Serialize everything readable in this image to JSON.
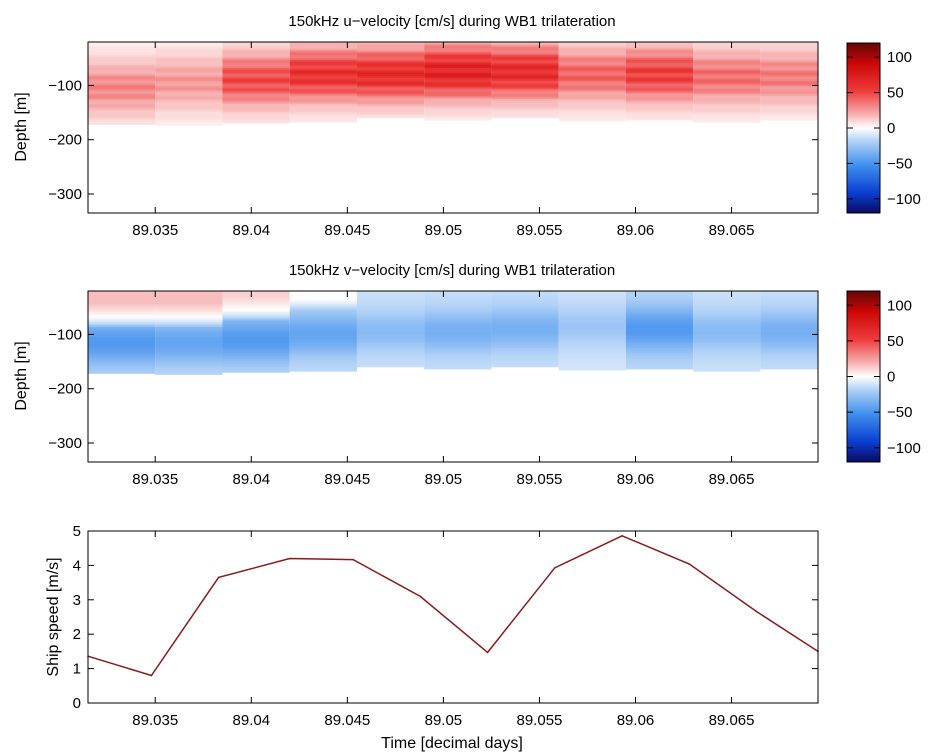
{
  "chart_data": [
    {
      "type": "heatmap",
      "title": "150kHz u−velocity [cm/s] during WB1 trilateration",
      "xlabel": "",
      "ylabel": "Depth [m]",
      "xlim": [
        89.0315,
        89.0695
      ],
      "ylim": [
        -335,
        -20
      ],
      "xticks": [
        "89.035",
        "89.04",
        "89.045",
        "89.05",
        "89.055",
        "89.06",
        "89.065"
      ],
      "yticks": [
        "−100",
        "−200",
        "−300"
      ],
      "colorbar": {
        "ticks": [
          "100",
          "50",
          "0",
          "−50",
          "−100"
        ],
        "range": [
          -120,
          120
        ]
      },
      "colormap": [
        "#0a0a60",
        "#0a3fd2",
        "#3f8fee",
        "#aed0f6",
        "#ffffff",
        "#f7b0b0",
        "#ee3a3a",
        "#cc0606",
        "#620808"
      ],
      "profiles": [
        {
          "t0": 89.0315,
          "t1": 89.035,
          "bottom": -172,
          "max": 45,
          "core": -105
        },
        {
          "t0": 89.035,
          "t1": 89.0385,
          "bottom": -174,
          "max": 40,
          "core": -95
        },
        {
          "t0": 89.0385,
          "t1": 89.042,
          "bottom": -170,
          "max": 62,
          "core": -90
        },
        {
          "t0": 89.042,
          "t1": 89.0455,
          "bottom": -168,
          "max": 72,
          "core": -80
        },
        {
          "t0": 89.0455,
          "t1": 89.049,
          "bottom": -160,
          "max": 75,
          "core": -80
        },
        {
          "t0": 89.049,
          "t1": 89.0525,
          "bottom": -164,
          "max": 80,
          "core": -75
        },
        {
          "t0": 89.0525,
          "t1": 89.056,
          "bottom": -160,
          "max": 75,
          "core": -75
        },
        {
          "t0": 89.056,
          "t1": 89.0595,
          "bottom": -166,
          "max": 55,
          "core": -80
        },
        {
          "t0": 89.0595,
          "t1": 89.063,
          "bottom": -164,
          "max": 66,
          "core": -80
        },
        {
          "t0": 89.063,
          "t1": 89.0665,
          "bottom": -168,
          "max": 52,
          "core": -85
        },
        {
          "t0": 89.0665,
          "t1": 89.0695,
          "bottom": -164,
          "max": 48,
          "core": -85
        }
      ]
    },
    {
      "type": "heatmap",
      "title": "150kHz v−velocity [cm/s] during WB1 trilateration",
      "xlabel": "",
      "ylabel": "Depth [m]",
      "xlim": [
        89.0315,
        89.0695
      ],
      "ylim": [
        -335,
        -20
      ],
      "xticks": [
        "89.035",
        "89.04",
        "89.045",
        "89.05",
        "89.055",
        "89.06",
        "89.065"
      ],
      "yticks": [
        "−100",
        "−200",
        "−300"
      ],
      "colorbar": {
        "ticks": [
          "100",
          "50",
          "0",
          "−50",
          "−100"
        ],
        "range": [
          -120,
          120
        ]
      },
      "colormap": [
        "#0a0a60",
        "#0a3fd2",
        "#3f8fee",
        "#aed0f6",
        "#ffffff",
        "#f7b0b0",
        "#ee3a3a",
        "#cc0606",
        "#620808"
      ],
      "profiles": [
        {
          "t0": 89.0315,
          "t1": 89.035,
          "bottom": -172,
          "top": 25,
          "zero": -68,
          "min": -55,
          "core": -115
        },
        {
          "t0": 89.035,
          "t1": 89.0385,
          "bottom": -174,
          "top": 25,
          "zero": -68,
          "min": -50,
          "core": -115
        },
        {
          "t0": 89.0385,
          "t1": 89.042,
          "bottom": -170,
          "top": 18,
          "zero": -55,
          "min": -55,
          "core": -110
        },
        {
          "t0": 89.042,
          "t1": 89.0455,
          "bottom": -168,
          "top": 3,
          "zero": -35,
          "min": -50,
          "core": -100
        },
        {
          "t0": 89.0455,
          "t1": 89.049,
          "bottom": -160,
          "top": -10,
          "zero": 0,
          "min": -40,
          "core": -95
        },
        {
          "t0": 89.049,
          "t1": 89.0525,
          "bottom": -164,
          "top": -22,
          "zero": 0,
          "min": -45,
          "core": -95
        },
        {
          "t0": 89.0525,
          "t1": 89.056,
          "bottom": -160,
          "top": -20,
          "zero": 0,
          "min": -45,
          "core": -90
        },
        {
          "t0": 89.056,
          "t1": 89.0595,
          "bottom": -166,
          "top": -25,
          "zero": 0,
          "min": -35,
          "core": -85
        },
        {
          "t0": 89.0595,
          "t1": 89.063,
          "bottom": -164,
          "top": -25,
          "zero": 0,
          "min": -55,
          "core": -90
        },
        {
          "t0": 89.063,
          "t1": 89.0665,
          "bottom": -168,
          "top": -15,
          "zero": 0,
          "min": -40,
          "core": -95
        },
        {
          "t0": 89.0665,
          "t1": 89.0695,
          "bottom": -164,
          "top": -25,
          "zero": 0,
          "min": -45,
          "core": -95
        }
      ]
    },
    {
      "type": "line",
      "title": "",
      "xlabel": "Time [decimal days]",
      "ylabel": "Ship speed [m/s]",
      "xlim": [
        89.0315,
        89.0695
      ],
      "ylim": [
        0,
        5
      ],
      "xticks": [
        "89.035",
        "89.04",
        "89.045",
        "89.05",
        "89.055",
        "89.06",
        "89.065"
      ],
      "yticks": [
        "0",
        "1",
        "2",
        "3",
        "4",
        "5"
      ],
      "color": "#8b1a1a",
      "x": [
        89.0315,
        89.0348,
        89.0383,
        89.042,
        89.0453,
        89.0488,
        89.0523,
        89.0558,
        89.0593,
        89.0628,
        89.0663,
        89.0695
      ],
      "y": [
        1.36,
        0.8,
        3.65,
        4.2,
        4.17,
        3.1,
        1.47,
        3.93,
        4.86,
        4.04,
        2.66,
        1.5
      ]
    }
  ]
}
